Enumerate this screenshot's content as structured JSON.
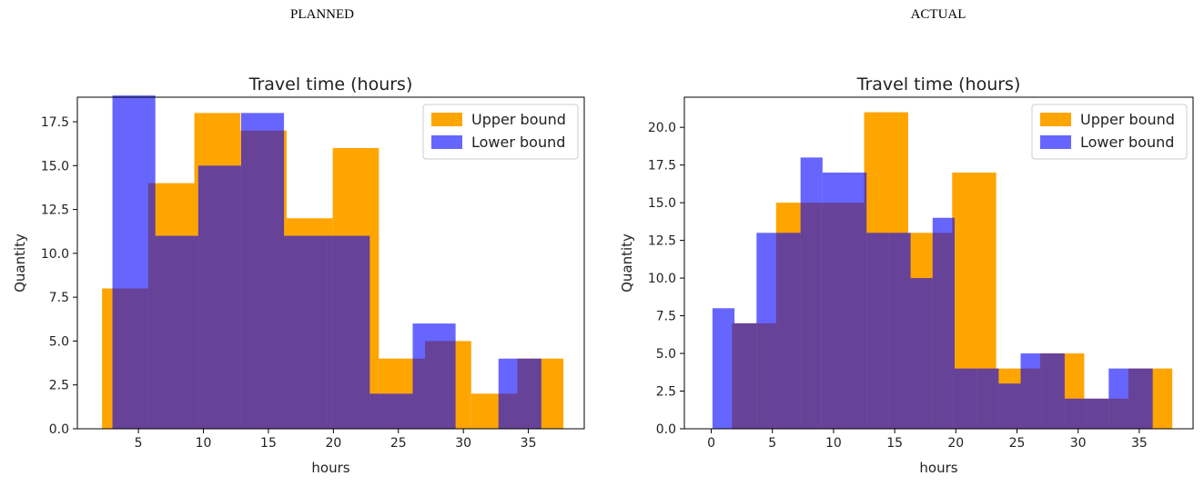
{
  "captions": {
    "left": "PLANNED",
    "right": "ACTUAL"
  },
  "colors": {
    "upper": "#ffa500",
    "lower": "#0000ff",
    "lower_alpha": 0.6
  },
  "chart_data": [
    {
      "type": "bar",
      "title": "Travel time (hours)",
      "xlabel": "hours",
      "ylabel": "Quantity",
      "xlim": [
        0.3,
        39.3
      ],
      "ylim": [
        0,
        18.9
      ],
      "xticks": [
        5,
        10,
        15,
        20,
        25,
        30,
        35
      ],
      "xtick_labels": [
        "5",
        "10",
        "15",
        "20",
        "25",
        "30",
        "35"
      ],
      "yticks": [
        0,
        2.5,
        5,
        7.5,
        10,
        12.5,
        15,
        17.5
      ],
      "ytick_labels": [
        "0.0",
        "2.5",
        "5.0",
        "7.5",
        "10.0",
        "12.5",
        "15.0",
        "17.5"
      ],
      "legend": "top-right",
      "series": [
        {
          "name": "Upper bound",
          "edges": [
            2.2,
            5.75,
            9.3,
            12.85,
            16.4,
            19.95,
            23.5,
            27.05,
            30.6,
            34.15,
            37.7
          ],
          "values": [
            8,
            14,
            18,
            17,
            12,
            16,
            4,
            5,
            2,
            4
          ]
        },
        {
          "name": "Lower bound",
          "edges": [
            3.0,
            6.3,
            9.6,
            12.9,
            16.2,
            19.5,
            22.8,
            26.1,
            29.4,
            32.7,
            36.0
          ],
          "values": [
            19,
            11,
            15,
            18,
            11,
            11,
            2,
            6,
            0,
            4
          ]
        }
      ]
    },
    {
      "type": "bar",
      "title": "Travel time (hours)",
      "xlabel": "hours",
      "ylabel": "Quantity",
      "xlim": [
        -2.2,
        39.4
      ],
      "ylim": [
        0,
        22.0
      ],
      "xticks": [
        0,
        5,
        10,
        15,
        20,
        25,
        30,
        35
      ],
      "xtick_labels": [
        "0",
        "5",
        "10",
        "15",
        "20",
        "25",
        "30",
        "35"
      ],
      "yticks": [
        0,
        2.5,
        5,
        7.5,
        10,
        12.5,
        15,
        17.5,
        20
      ],
      "ytick_labels": [
        "0.0",
        "2.5",
        "5.0",
        "7.5",
        "10.0",
        "12.5",
        "15.0",
        "17.5",
        "20.0"
      ],
      "legend": "top-right",
      "series": [
        {
          "name": "Upper bound",
          "edges": [
            1.7,
            5.3,
            8.9,
            12.5,
            16.1,
            19.7,
            23.3,
            26.9,
            30.5,
            34.1,
            37.7
          ],
          "values": [
            7,
            15,
            15,
            21,
            13,
            17,
            4,
            5,
            2,
            4
          ]
        },
        {
          "name": "Lower bound",
          "edges": [
            0.1,
            1.9,
            3.7,
            5.5,
            7.3,
            9.1,
            10.9,
            12.7,
            14.5,
            16.3,
            18.1,
            19.9,
            21.7,
            23.5,
            25.3,
            27.1,
            28.9,
            30.7,
            32.5,
            34.3,
            36.1
          ],
          "values": [
            8,
            7,
            13,
            13,
            18,
            17,
            17,
            13,
            13,
            10,
            14,
            4,
            4,
            3,
            5,
            5,
            2,
            2,
            4,
            4
          ]
        }
      ]
    }
  ]
}
